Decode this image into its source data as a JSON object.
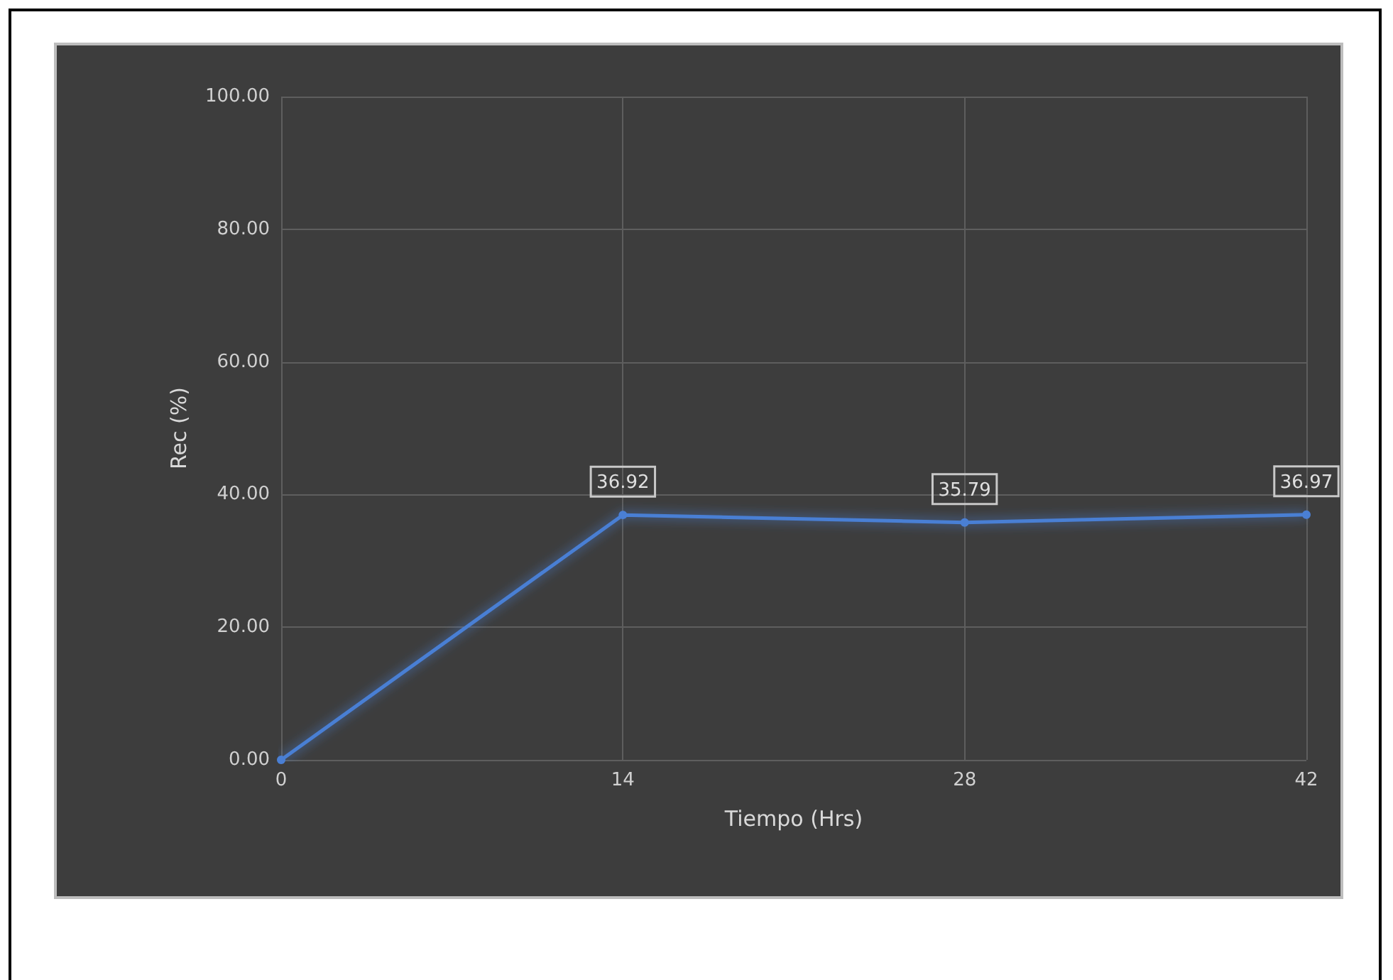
{
  "chart_data": {
    "type": "line",
    "xlabel": "Tiempo (Hrs)",
    "ylabel": "Rec (%)",
    "x": [
      0,
      14,
      28,
      42
    ],
    "series": [
      {
        "color": "#4a7fd4",
        "values": [
          0,
          36.92,
          35.79,
          36.97
        ],
        "value_labels": [
          null,
          "36.92",
          "35.79",
          "36.97"
        ]
      }
    ],
    "xlim": [
      0,
      42
    ],
    "xticks": [
      0,
      14,
      28,
      42
    ],
    "ylim": [
      0,
      100
    ],
    "yticks": [
      {
        "value": 0,
        "label": "0.00"
      },
      {
        "value": 20,
        "label": "20.00"
      },
      {
        "value": 40,
        "label": "40.00"
      },
      {
        "value": 60,
        "label": "60.00"
      },
      {
        "value": 80,
        "label": "80.00"
      },
      {
        "value": 100,
        "label": "100.00"
      }
    ],
    "grid": true,
    "marker": "circle",
    "line_style": "solid"
  }
}
